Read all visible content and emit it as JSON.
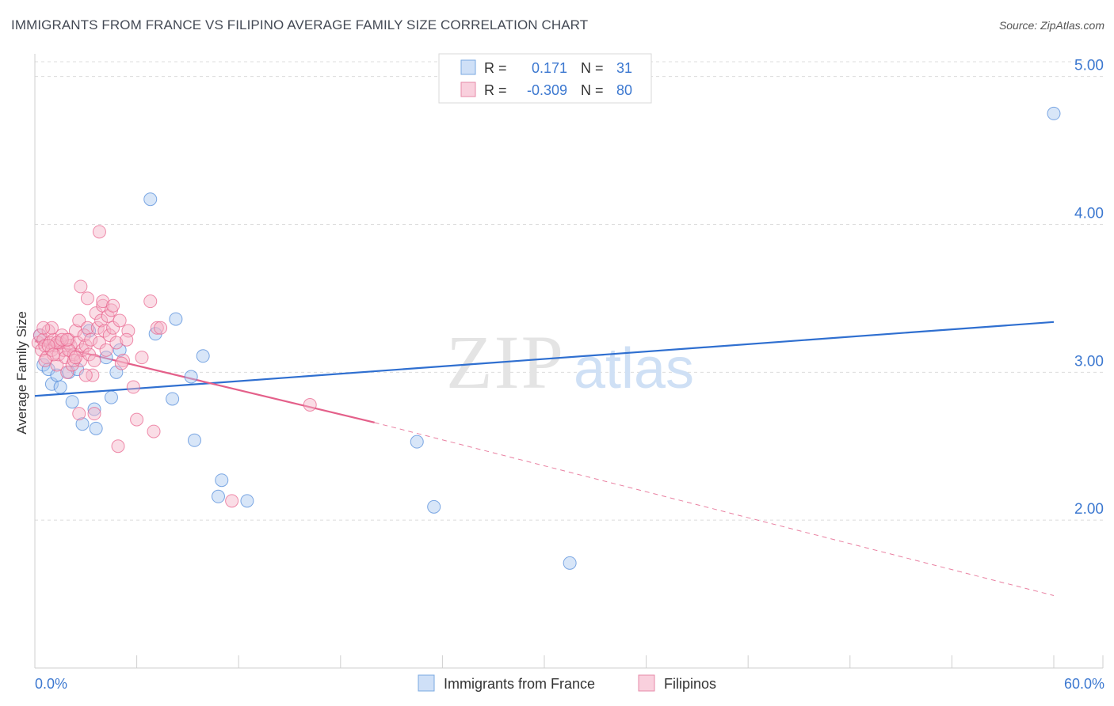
{
  "title": "IMMIGRANTS FROM FRANCE VS FILIPINO AVERAGE FAMILY SIZE CORRELATION CHART",
  "source": "Source: ZipAtlas.com",
  "watermark": {
    "zip": "ZIP",
    "atlas": "atlas"
  },
  "legend_top": {
    "rows": [
      {
        "r_label": "R =",
        "r_value": "0.171",
        "n_label": "N =",
        "n_value": "31",
        "color": "#a8c8f0"
      },
      {
        "r_label": "R =",
        "r_value": "-0.309",
        "n_label": "N =",
        "n_value": "80",
        "color": "#f5b3c8"
      }
    ]
  },
  "legend_bottom": [
    {
      "label": "Immigrants from France",
      "color": "#a8c8f0"
    },
    {
      "label": "Filipinos",
      "color": "#f5b3c8"
    }
  ],
  "chart_data": {
    "type": "scatter",
    "title": "IMMIGRANTS FROM FRANCE VS FILIPINO AVERAGE FAMILY SIZE CORRELATION CHART",
    "xlabel": "",
    "ylabel": "Average Family Size",
    "xlim": [
      0,
      60
    ],
    "ylim": [
      1.0,
      5.1
    ],
    "x_tick_labels": [
      "0.0%",
      "60.0%"
    ],
    "y_ticks": [
      2.0,
      3.0,
      4.0,
      5.0
    ],
    "y_tick_labels": [
      "2.00",
      "3.00",
      "4.00",
      "5.00"
    ],
    "grid": true,
    "series": [
      {
        "name": "Immigrants from France",
        "color": "#4a86d8",
        "fill": "#a8c8f0",
        "points": [
          [
            0.3,
            3.25
          ],
          [
            0.5,
            3.05
          ],
          [
            0.8,
            3.02
          ],
          [
            1.0,
            2.92
          ],
          [
            1.3,
            2.98
          ],
          [
            1.5,
            2.9
          ],
          [
            2.0,
            3.0
          ],
          [
            2.2,
            2.8
          ],
          [
            2.5,
            3.02
          ],
          [
            2.8,
            2.65
          ],
          [
            3.2,
            3.28
          ],
          [
            3.5,
            2.75
          ],
          [
            3.6,
            2.62
          ],
          [
            4.2,
            3.1
          ],
          [
            4.5,
            2.83
          ],
          [
            4.8,
            3.0
          ],
          [
            5.0,
            3.15
          ],
          [
            6.8,
            4.17
          ],
          [
            7.1,
            3.26
          ],
          [
            8.1,
            2.82
          ],
          [
            8.3,
            3.36
          ],
          [
            9.2,
            2.97
          ],
          [
            9.4,
            2.54
          ],
          [
            9.9,
            3.11
          ],
          [
            10.8,
            2.16
          ],
          [
            11.0,
            2.27
          ],
          [
            12.5,
            2.13
          ],
          [
            22.5,
            2.53
          ],
          [
            23.5,
            2.09
          ],
          [
            31.5,
            1.71
          ],
          [
            60.0,
            4.75
          ]
        ],
        "trend": {
          "x": [
            0,
            60
          ],
          "y": [
            2.84,
            3.34
          ]
        }
      },
      {
        "name": "Filipinos",
        "color": "#e8608a",
        "fill": "#f5b3c8",
        "points": [
          [
            0.2,
            3.2
          ],
          [
            0.3,
            3.25
          ],
          [
            0.4,
            3.15
          ],
          [
            0.5,
            3.22
          ],
          [
            0.6,
            3.18
          ],
          [
            0.7,
            3.1
          ],
          [
            0.8,
            3.28
          ],
          [
            0.9,
            3.2
          ],
          [
            1.0,
            3.15
          ],
          [
            1.1,
            3.22
          ],
          [
            1.2,
            3.18
          ],
          [
            1.3,
            3.05
          ],
          [
            1.4,
            3.12
          ],
          [
            1.5,
            3.2
          ],
          [
            1.6,
            3.25
          ],
          [
            1.7,
            3.15
          ],
          [
            1.8,
            3.1
          ],
          [
            1.9,
            3.0
          ],
          [
            2.0,
            3.22
          ],
          [
            2.1,
            3.18
          ],
          [
            2.2,
            3.05
          ],
          [
            2.3,
            3.12
          ],
          [
            2.4,
            3.28
          ],
          [
            2.5,
            3.2
          ],
          [
            2.6,
            3.35
          ],
          [
            2.7,
            3.08
          ],
          [
            2.8,
            3.15
          ],
          [
            2.9,
            3.25
          ],
          [
            3.0,
            3.18
          ],
          [
            3.1,
            3.3
          ],
          [
            3.2,
            3.12
          ],
          [
            3.3,
            3.22
          ],
          [
            3.4,
            2.98
          ],
          [
            3.5,
            3.08
          ],
          [
            3.6,
            3.4
          ],
          [
            3.7,
            3.3
          ],
          [
            3.8,
            3.2
          ],
          [
            3.9,
            3.35
          ],
          [
            4.0,
            3.45
          ],
          [
            4.1,
            3.28
          ],
          [
            4.2,
            3.15
          ],
          [
            4.3,
            3.38
          ],
          [
            4.4,
            3.25
          ],
          [
            4.5,
            3.42
          ],
          [
            4.6,
            3.3
          ],
          [
            4.8,
            3.2
          ],
          [
            5.0,
            3.35
          ],
          [
            5.2,
            3.08
          ],
          [
            5.5,
            3.28
          ],
          [
            5.8,
            2.9
          ],
          [
            6.0,
            2.68
          ],
          [
            6.3,
            3.1
          ],
          [
            6.8,
            3.48
          ],
          [
            7.0,
            2.6
          ],
          [
            7.2,
            3.3
          ],
          [
            2.6,
            2.72
          ],
          [
            3.0,
            2.98
          ],
          [
            3.5,
            2.72
          ],
          [
            3.8,
            3.95
          ],
          [
            4.0,
            3.48
          ],
          [
            4.6,
            3.45
          ],
          [
            4.9,
            2.5
          ],
          [
            1.0,
            3.3
          ],
          [
            1.3,
            3.2
          ],
          [
            1.6,
            3.22
          ],
          [
            2.0,
            3.15
          ],
          [
            2.3,
            3.08
          ],
          [
            0.5,
            3.3
          ],
          [
            0.8,
            3.18
          ],
          [
            1.1,
            3.12
          ],
          [
            2.7,
            3.58
          ],
          [
            3.1,
            3.5
          ],
          [
            5.1,
            3.06
          ],
          [
            5.4,
            3.22
          ],
          [
            7.4,
            3.3
          ],
          [
            16.2,
            2.78
          ],
          [
            11.6,
            2.13
          ],
          [
            1.9,
            3.22
          ],
          [
            2.4,
            3.1
          ],
          [
            0.6,
            3.08
          ]
        ],
        "trend": {
          "x": [
            0,
            20
          ],
          "y": [
            3.21,
            2.66
          ]
        },
        "trend_extension": {
          "x": [
            20,
            60
          ],
          "y": [
            2.66,
            1.49
          ]
        }
      }
    ]
  }
}
